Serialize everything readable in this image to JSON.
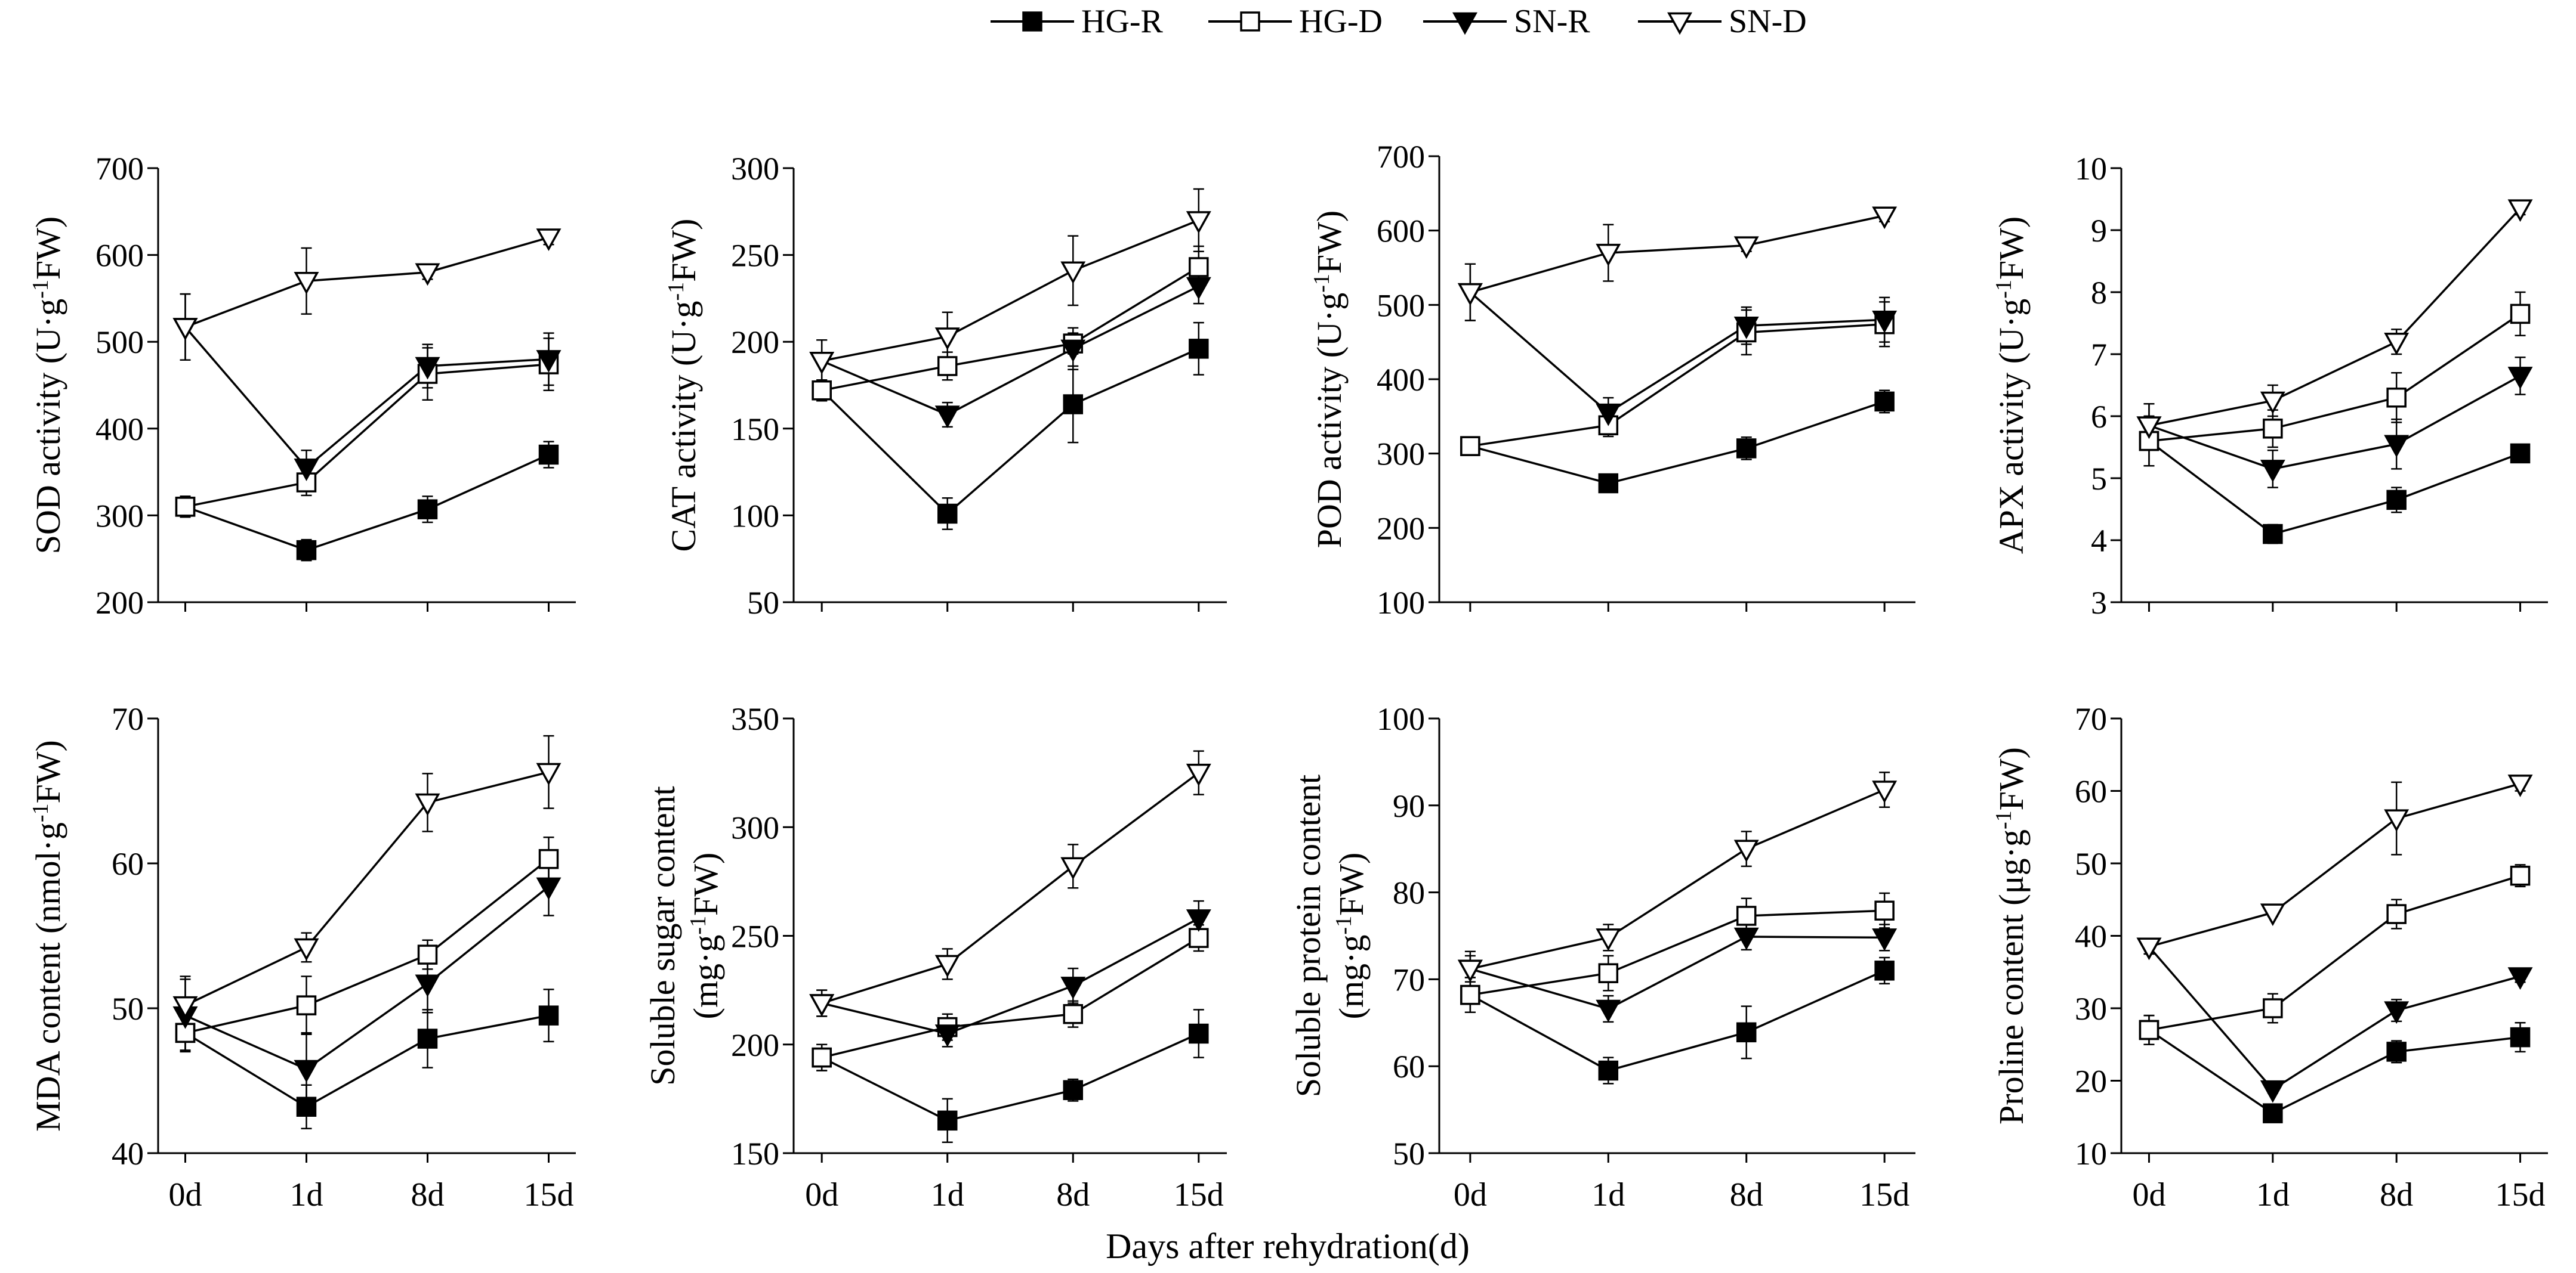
{
  "figure": {
    "xlabel": "Days after rehydration(d)",
    "legend": {
      "placement": "top-center",
      "entries": [
        {
          "label": "HG-R",
          "marker": "square-filled"
        },
        {
          "label": "HG-D",
          "marker": "square-open"
        },
        {
          "label": "SN-R",
          "marker": "triangle-down-filled"
        },
        {
          "label": "SN-D",
          "marker": "triangle-down-open"
        }
      ]
    }
  },
  "chart_data": [
    {
      "type": "line",
      "panel": "sod",
      "ylabel": {
        "pre": "SOD activity  (U·g",
        "sup": "-1",
        "post": "FW)"
      },
      "categories": [
        "0d",
        "1d",
        "8d",
        "15d"
      ],
      "ylim": [
        200,
        700
      ],
      "yticks": [
        200,
        300,
        400,
        500,
        600,
        700
      ],
      "series": [
        {
          "name": "HG-R",
          "values": [
            310,
            260,
            307,
            370
          ],
          "errors": [
            12,
            12,
            15,
            15
          ]
        },
        {
          "name": "HG-D",
          "values": [
            310,
            338,
            463,
            474
          ],
          "errors": [
            12,
            15,
            30,
            30
          ]
        },
        {
          "name": "SN-R",
          "values": [
            517,
            355,
            472,
            480
          ],
          "errors": [
            38,
            20,
            25,
            30
          ]
        },
        {
          "name": "SN-D",
          "values": [
            517,
            570,
            580,
            620
          ],
          "errors": [
            38,
            38,
            8,
            8
          ]
        }
      ]
    },
    {
      "type": "line",
      "panel": "cat",
      "ylabel": {
        "pre": "CAT activity (U·g",
        "sup": "-1",
        "post": "FW)"
      },
      "categories": [
        "0d",
        "1d",
        "8d",
        "15d"
      ],
      "ylim": [
        50,
        300
      ],
      "yticks": [
        50,
        100,
        150,
        200,
        250,
        300
      ],
      "series": [
        {
          "name": "HG-R",
          "values": [
            172,
            101,
            164,
            196
          ],
          "errors": [
            6,
            9,
            22,
            15
          ]
        },
        {
          "name": "HG-D",
          "values": [
            172,
            186,
            199,
            243
          ],
          "errors": [
            6,
            8,
            6,
            12
          ]
        },
        {
          "name": "SN-R",
          "values": [
            189,
            158,
            196,
            232
          ],
          "errors": [
            12,
            7,
            12,
            10
          ]
        },
        {
          "name": "SN-D",
          "values": [
            189,
            203,
            241,
            270
          ],
          "errors": [
            12,
            14,
            20,
            18
          ]
        }
      ]
    },
    {
      "type": "line",
      "panel": "pod",
      "ylabel": {
        "pre": "POD activity  (U·g",
        "sup": "-1",
        "post": "FW)"
      },
      "categories": [
        "0d",
        "1d",
        "8d",
        "15d"
      ],
      "ylim": [
        100,
        700
      ],
      "yticks": [
        100,
        200,
        300,
        400,
        500,
        600,
        700
      ],
      "series": [
        {
          "name": "HG-R",
          "values": [
            310,
            260,
            307,
            370
          ],
          "errors": [
            12,
            12,
            15,
            15
          ]
        },
        {
          "name": "HG-D",
          "values": [
            310,
            338,
            463,
            474
          ],
          "errors": [
            12,
            15,
            30,
            30
          ]
        },
        {
          "name": "SN-R",
          "values": [
            517,
            355,
            472,
            480
          ],
          "errors": [
            38,
            20,
            25,
            30
          ]
        },
        {
          "name": "SN-D",
          "values": [
            517,
            570,
            580,
            620
          ],
          "errors": [
            38,
            38,
            8,
            8
          ]
        }
      ]
    },
    {
      "type": "line",
      "panel": "apx",
      "ylabel": {
        "pre": "APX activity (U·g",
        "sup": "-1",
        "post": "FW)"
      },
      "categories": [
        "0d",
        "1d",
        "8d",
        "15d"
      ],
      "ylim": [
        3,
        10
      ],
      "yticks": [
        3,
        4,
        5,
        6,
        7,
        8,
        9,
        10
      ],
      "series": [
        {
          "name": "HG-R",
          "values": [
            5.6,
            4.1,
            4.65,
            5.4
          ],
          "errors": [
            0.4,
            0.15,
            0.2,
            0.1
          ]
        },
        {
          "name": "HG-D",
          "values": [
            5.6,
            5.8,
            6.3,
            7.65
          ],
          "errors": [
            0.4,
            0.3,
            0.4,
            0.35
          ]
        },
        {
          "name": "SN-R",
          "values": [
            5.85,
            5.15,
            5.55,
            6.65
          ],
          "errors": [
            0.35,
            0.3,
            0.4,
            0.3
          ]
        },
        {
          "name": "SN-D",
          "values": [
            5.85,
            6.25,
            7.2,
            9.35
          ],
          "errors": [
            0.35,
            0.25,
            0.2,
            0.1
          ]
        }
      ]
    },
    {
      "type": "line",
      "panel": "mda",
      "ylabel": {
        "pre": "MDA content (nmol·g",
        "sup": "-1",
        "post": "FW)"
      },
      "categories": [
        "0d",
        "1d",
        "8d",
        "15d"
      ],
      "ylim": [
        40,
        70
      ],
      "yticks": [
        40,
        50,
        60,
        70
      ],
      "series": [
        {
          "name": "HG-R",
          "values": [
            48.3,
            43.2,
            47.9,
            49.5
          ],
          "errors": [
            1.2,
            1.5,
            2.0,
            1.8
          ]
        },
        {
          "name": "HG-D",
          "values": [
            48.3,
            50.2,
            53.7,
            60.3
          ],
          "errors": [
            1.2,
            2.0,
            1.0,
            1.5
          ]
        },
        {
          "name": "SN-R",
          "values": [
            49.5,
            45.8,
            51.7,
            58.4
          ],
          "errors": [
            2.5,
            2.5,
            2.0,
            2.0
          ]
        },
        {
          "name": "SN-D",
          "values": [
            50.2,
            54.2,
            64.2,
            66.3
          ],
          "errors": [
            2.0,
            1.0,
            2.0,
            2.5
          ]
        }
      ]
    },
    {
      "type": "line",
      "panel": "sugar",
      "ylabel": {
        "pre": "Soluble sugar content",
        "line2pre": "(mg·g",
        "sup": "-1",
        "post": "FW)"
      },
      "categories": [
        "0d",
        "1d",
        "8d",
        "15d"
      ],
      "ylim": [
        150,
        350
      ],
      "yticks": [
        150,
        200,
        250,
        300,
        350
      ],
      "series": [
        {
          "name": "HG-R",
          "values": [
            194,
            165,
            179,
            205
          ],
          "errors": [
            6,
            10,
            5,
            11
          ]
        },
        {
          "name": "HG-D",
          "values": [
            194,
            208,
            214,
            249
          ],
          "errors": [
            6,
            6,
            6,
            6
          ]
        },
        {
          "name": "SN-R",
          "values": [
            219,
            205,
            227,
            258
          ],
          "errors": [
            6,
            6,
            8,
            8
          ]
        },
        {
          "name": "SN-D",
          "values": [
            219,
            237,
            282,
            325
          ],
          "errors": [
            6,
            7,
            10,
            10
          ]
        }
      ]
    },
    {
      "type": "line",
      "panel": "protein",
      "ylabel": {
        "pre": "Soluble protein content",
        "line2pre": "(mg·g",
        "sup": "-1",
        "post": "FW)"
      },
      "categories": [
        "0d",
        "1d",
        "8d",
        "15d"
      ],
      "ylim": [
        50,
        100
      ],
      "yticks": [
        50,
        60,
        70,
        80,
        90,
        100
      ],
      "series": [
        {
          "name": "HG-R",
          "values": [
            68.2,
            59.5,
            63.9,
            71.0
          ],
          "errors": [
            2.0,
            1.5,
            3.0,
            1.5
          ]
        },
        {
          "name": "HG-D",
          "values": [
            68.2,
            70.7,
            77.3,
            77.9
          ],
          "errors": [
            2.0,
            2.0,
            2.0,
            2.0
          ]
        },
        {
          "name": "SN-R",
          "values": [
            71.2,
            66.6,
            74.9,
            74.8
          ],
          "errors": [
            2.0,
            1.5,
            1.5,
            1.5
          ]
        },
        {
          "name": "SN-D",
          "values": [
            71.2,
            74.8,
            85.0,
            91.8
          ],
          "errors": [
            1.5,
            1.5,
            2.0,
            2.0
          ]
        }
      ]
    },
    {
      "type": "line",
      "panel": "proline",
      "ylabel": {
        "pre": "Proline content (μg·g",
        "sup": "-1",
        "post": "FW)"
      },
      "categories": [
        "0d",
        "1d",
        "8d",
        "15d"
      ],
      "ylim": [
        10,
        70
      ],
      "yticks": [
        10,
        20,
        30,
        40,
        50,
        60,
        70
      ],
      "series": [
        {
          "name": "HG-R",
          "values": [
            27.0,
            15.5,
            24.0,
            26.0
          ],
          "errors": [
            2.0,
            0.5,
            1.5,
            2.0
          ]
        },
        {
          "name": "HG-D",
          "values": [
            27.0,
            30.0,
            43.0,
            48.3
          ],
          "errors": [
            2.0,
            2.0,
            2.0,
            1.5
          ]
        },
        {
          "name": "SN-R",
          "values": [
            38.5,
            18.8,
            29.7,
            34.4
          ],
          "errors": [
            1.0,
            0.5,
            1.5,
            0.8
          ]
        },
        {
          "name": "SN-D",
          "values": [
            38.5,
            43.2,
            56.2,
            61.0
          ],
          "errors": [
            1.0,
            0.5,
            5.0,
            1.0
          ]
        }
      ]
    }
  ]
}
